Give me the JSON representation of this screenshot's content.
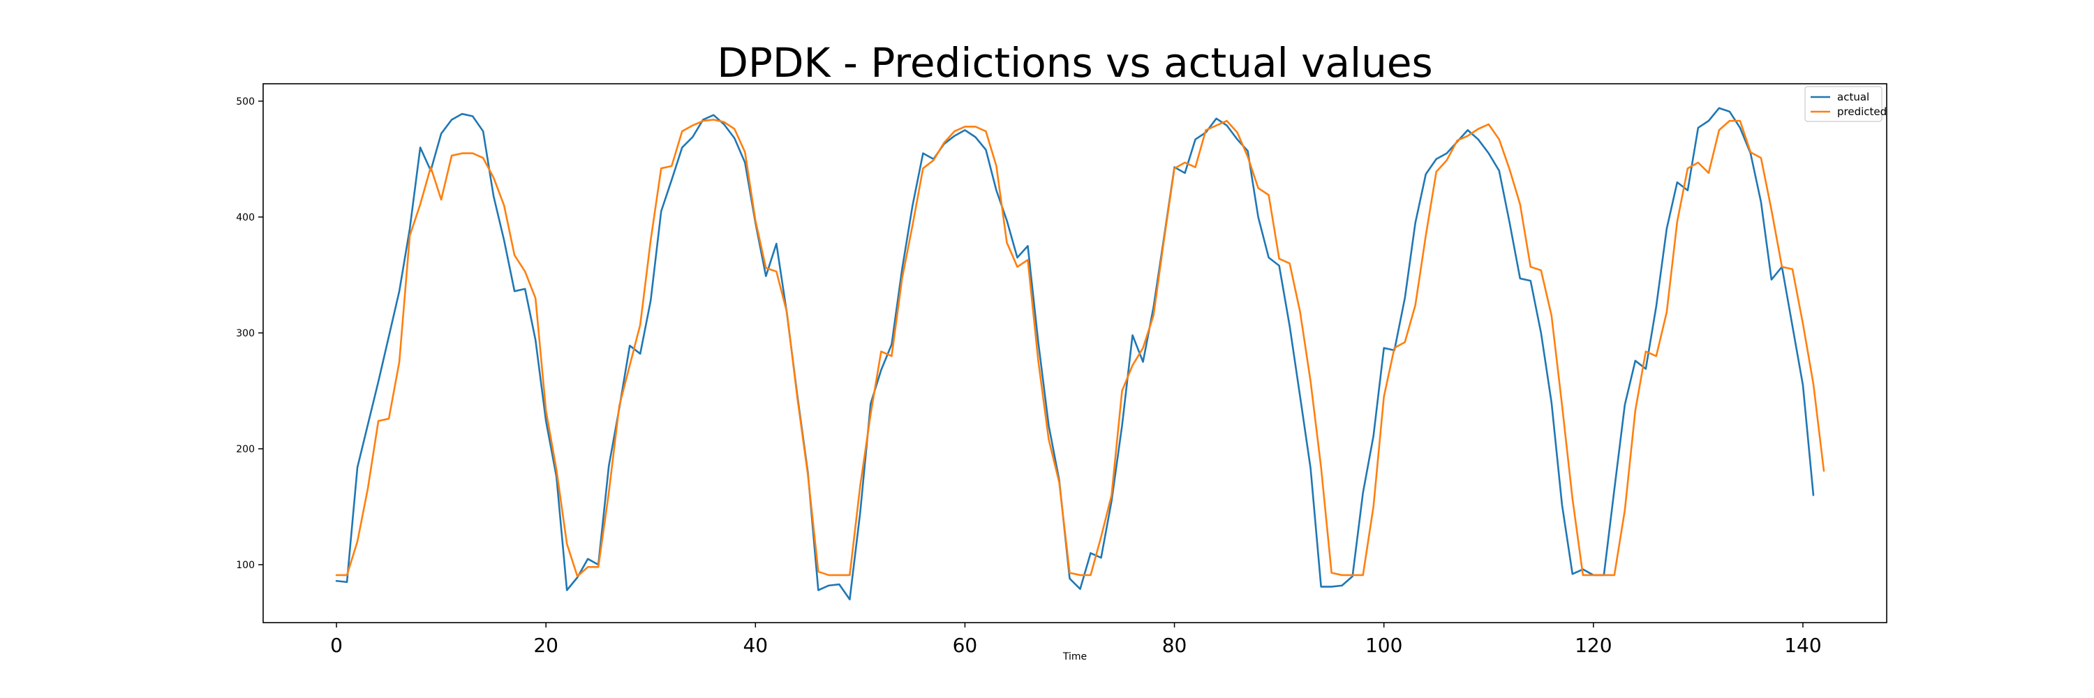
{
  "chart_data": {
    "type": "line",
    "title": "DPDK - Predictions vs actual values",
    "xlabel": "Time",
    "ylabel": "",
    "xlim": [
      -7,
      148
    ],
    "ylim": [
      50,
      515
    ],
    "xticks": [
      0,
      20,
      40,
      60,
      80,
      100,
      120,
      140
    ],
    "yticks": [
      100,
      200,
      300,
      400,
      500
    ],
    "grid": false,
    "legend": "top-right",
    "series": [
      {
        "name": "actual",
        "color": "#1f77b4",
        "values": [
          86,
          85,
          184,
          221,
          258,
          297,
          336,
          390,
          460,
          440,
          472,
          484,
          489,
          487,
          474,
          418,
          380,
          336,
          338,
          294,
          224,
          176,
          78,
          89,
          105,
          100,
          185,
          235,
          289,
          282,
          328,
          405,
          432,
          460,
          469,
          484,
          488,
          480,
          468,
          447,
          395,
          349,
          377,
          317,
          246,
          180,
          78,
          82,
          83,
          70,
          145,
          239,
          268,
          290,
          355,
          410,
          455,
          450,
          463,
          470,
          475,
          469,
          458,
          423,
          397,
          365,
          375,
          292,
          220,
          173,
          88,
          79,
          110,
          106,
          155,
          220,
          298,
          275,
          322,
          382,
          443,
          438,
          467,
          473,
          485,
          479,
          467,
          457,
          400,
          365,
          358,
          306,
          245,
          183,
          81,
          81,
          82,
          90,
          162,
          211,
          287,
          285,
          330,
          395,
          437,
          450,
          455,
          465,
          475,
          467,
          455,
          440,
          395,
          347,
          345,
          300,
          240,
          152,
          92,
          96,
          91,
          91,
          165,
          238,
          276,
          269,
          323,
          390,
          430,
          423,
          477,
          483,
          494,
          491,
          477,
          455,
          413,
          346,
          357,
          306,
          255,
          160
        ]
      },
      {
        "name": "predicted",
        "color": "#ff7f0e",
        "values": [
          91,
          91,
          120,
          166,
          224,
          226,
          275,
          384,
          411,
          443,
          415,
          453,
          455,
          455,
          451,
          434,
          410,
          367,
          353,
          330,
          233,
          182,
          118,
          90,
          98,
          98,
          162,
          237,
          272,
          307,
          380,
          442,
          444,
          474,
          479,
          483,
          484,
          482,
          476,
          456,
          397,
          356,
          353,
          318,
          244,
          178,
          94,
          91,
          91,
          91,
          168,
          230,
          284,
          280,
          347,
          393,
          442,
          449,
          464,
          474,
          478,
          478,
          474,
          444,
          378,
          357,
          363,
          276,
          208,
          171,
          93,
          91,
          91,
          124,
          160,
          250,
          272,
          287,
          315,
          380,
          442,
          447,
          443,
          475,
          479,
          483,
          473,
          452,
          425,
          419,
          364,
          360,
          318,
          258,
          184,
          93,
          91,
          91,
          91,
          150,
          245,
          287,
          292,
          324,
          384,
          439,
          449,
          466,
          470,
          476,
          480,
          467,
          441,
          411,
          357,
          354,
          315,
          238,
          157,
          91,
          91,
          91,
          91,
          147,
          233,
          284,
          280,
          318,
          396,
          442,
          447,
          438,
          475,
          483,
          483,
          456,
          451,
          406,
          357,
          355,
          308,
          256,
          181
        ]
      }
    ]
  }
}
